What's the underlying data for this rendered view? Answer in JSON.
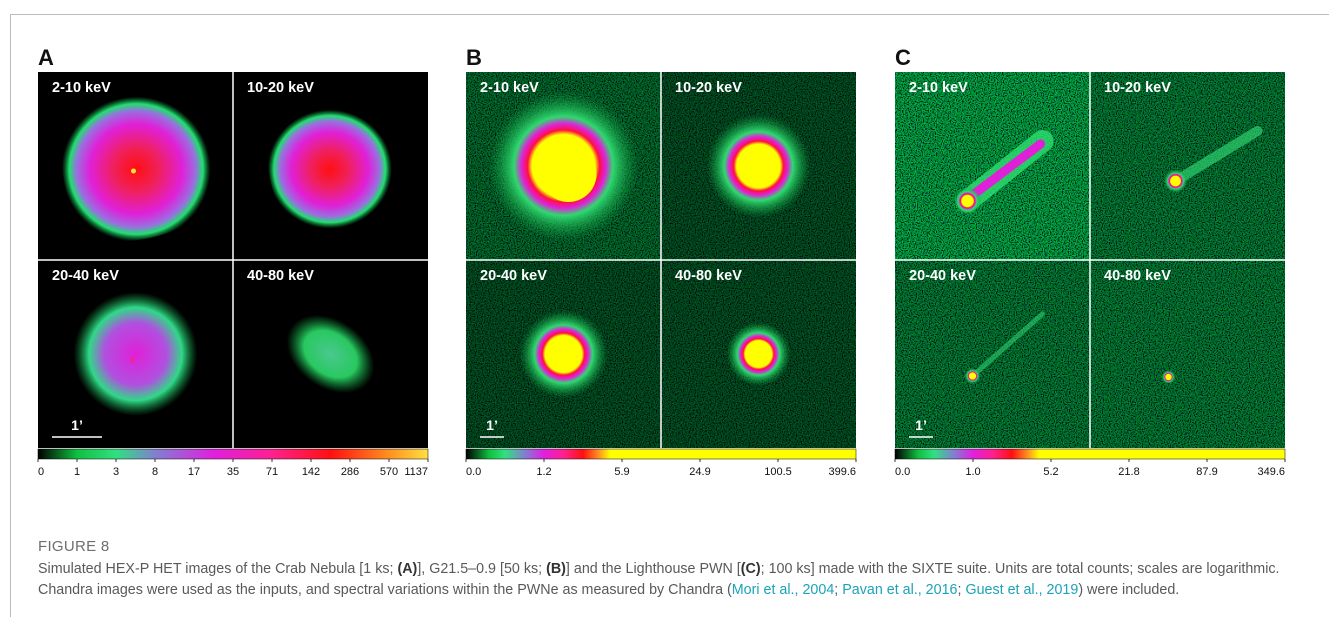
{
  "figure": {
    "panels": [
      {
        "letter": "A",
        "subpanels": [
          "2-10 keV",
          "10-20 keV",
          "20-40 keV",
          "40-80 keV"
        ],
        "scale_bar": "1’",
        "colorbar": [
          "0",
          "1",
          "3",
          "8",
          "17",
          "35",
          "71",
          "142",
          "286",
          "570",
          "1137"
        ]
      },
      {
        "letter": "B",
        "subpanels": [
          "2-10 keV",
          "10-20 keV",
          "20-40 keV",
          "40-80 keV"
        ],
        "scale_bar": "1’",
        "colorbar": [
          "0.0",
          "1.2",
          "5.9",
          "24.9",
          "100.5",
          "399.6"
        ]
      },
      {
        "letter": "C",
        "subpanels": [
          "2-10 keV",
          "10-20 keV",
          "20-40 keV",
          "40-80 keV"
        ],
        "scale_bar": "1’",
        "colorbar": [
          "0.0",
          "1.0",
          "5.2",
          "21.8",
          "87.9",
          "349.6"
        ]
      }
    ],
    "caption": {
      "label": "FIGURE 8",
      "parts": [
        "Simulated HEX-P HET images of the Crab Nebula [1 ks; ",
        "(A)",
        "], G21.5–0.9 [50 ks; ",
        "(B)",
        "] and the Lighthouse PWN [",
        "(C)",
        "; 100 ks] made with the SIXTE suite. Units are total counts; scales are logarithmic. Chandra images were used as the inputs, and spectral variations within the PWNe as measured by Chandra (",
        "Mori et al., 2004",
        "; ",
        "Pavan et al., 2016",
        "; ",
        "Guest et al., 2019",
        ") were included."
      ]
    }
  }
}
